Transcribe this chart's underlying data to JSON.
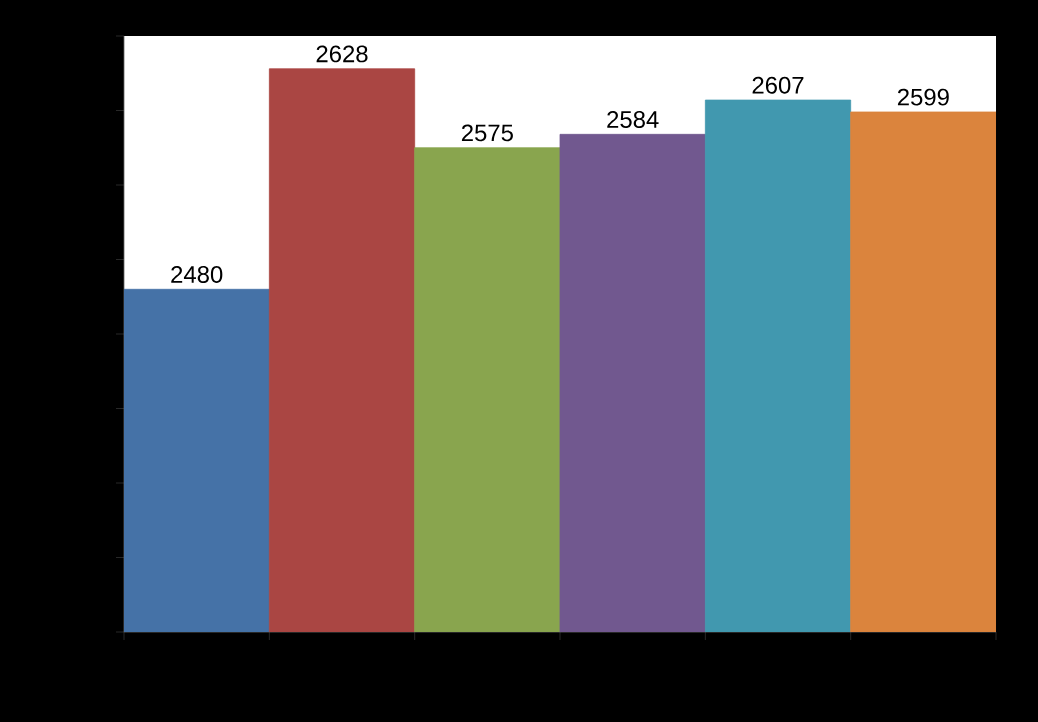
{
  "chart_data": {
    "type": "bar",
    "categories": [
      null,
      null,
      null,
      null,
      null,
      null
    ],
    "values": [
      2480,
      2628,
      2575,
      2584,
      2607,
      2599
    ],
    "colors": [
      "#4572a7",
      "#aa4643",
      "#89a54e",
      "#71588f",
      "#4198af",
      "#db843d"
    ],
    "ylim": [
      2250,
      2650
    ],
    "yticks": [
      {
        "value": 2250,
        "label": null
      },
      {
        "value": 2300,
        "label": null
      },
      {
        "value": 2350,
        "label": null
      },
      {
        "value": 2400,
        "label": null
      },
      {
        "value": 2450,
        "label": null
      },
      {
        "value": 2500,
        "label": null
      },
      {
        "value": 2550,
        "label": null
      },
      {
        "value": 2600,
        "label": null
      },
      {
        "value": 2650,
        "label": null
      }
    ],
    "data_labels": true
  }
}
